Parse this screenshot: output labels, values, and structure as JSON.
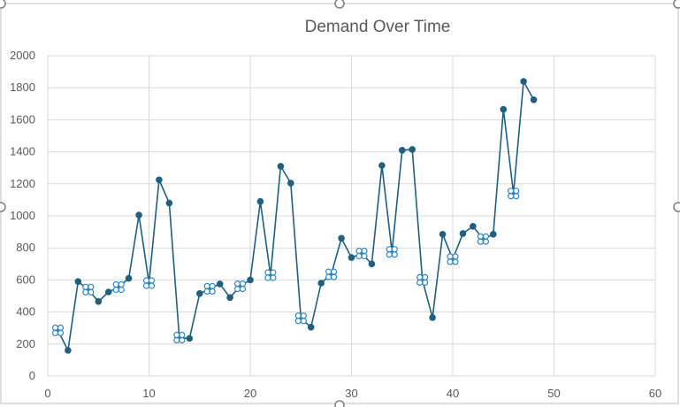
{
  "chart_data": {
    "type": "line",
    "title": "Demand Over Time",
    "xlabel": "",
    "ylabel": "",
    "xlim": [
      0,
      60
    ],
    "ylim": [
      0,
      2000
    ],
    "x_ticks": [
      0,
      10,
      20,
      30,
      40,
      50,
      60
    ],
    "y_ticks": [
      0,
      200,
      400,
      600,
      800,
      1000,
      1200,
      1400,
      1600,
      1800,
      2000
    ],
    "grid": true,
    "legend": "none",
    "colors": {
      "line": "#1f5f7f",
      "marker": "#1f5f7f",
      "special_marker": "#2e86c1"
    },
    "series": [
      {
        "x": [
          1,
          2,
          3,
          4,
          5,
          6,
          7,
          8,
          9,
          10,
          11,
          12,
          13,
          14,
          15,
          16,
          17,
          18,
          19,
          20,
          21,
          22,
          23,
          24,
          25,
          26,
          27,
          28,
          29,
          30,
          31,
          32,
          33,
          34,
          35,
          36,
          37,
          38,
          39,
          40,
          41,
          42,
          43,
          44,
          45,
          46,
          47,
          48
        ],
        "values": [
          285,
          160,
          590,
          540,
          465,
          525,
          555,
          610,
          1005,
          580,
          1225,
          1080,
          240,
          235,
          515,
          545,
          575,
          490,
          560,
          600,
          1090,
          630,
          1310,
          1205,
          360,
          305,
          580,
          635,
          860,
          740,
          765,
          700,
          1315,
          775,
          1410,
          1415,
          600,
          365,
          885,
          730,
          890,
          935,
          855,
          885,
          1665,
          1140,
          1840,
          1725
        ],
        "special_markers_at_x": [
          1,
          4,
          7,
          10,
          13,
          16,
          19,
          22,
          25,
          28,
          31,
          34,
          37,
          40,
          43,
          46
        ]
      }
    ]
  }
}
